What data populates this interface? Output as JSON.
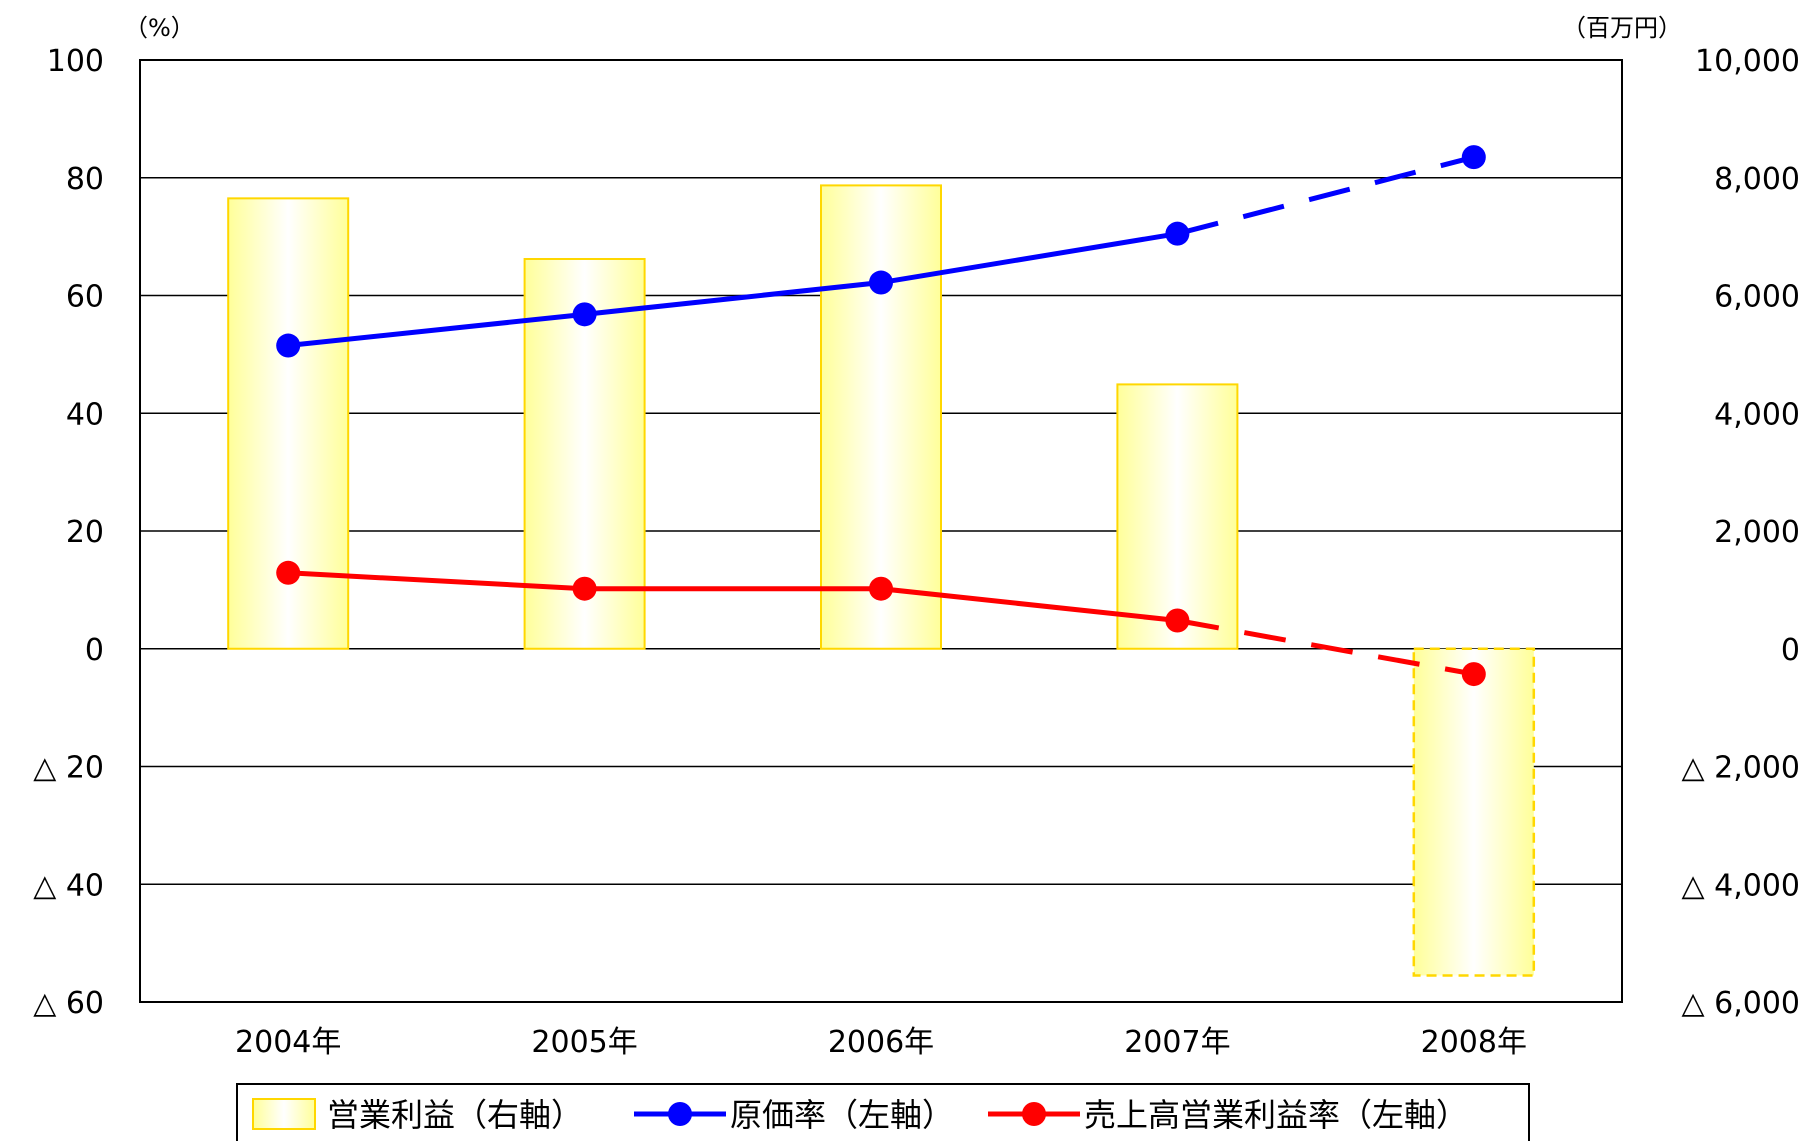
{
  "chart_data": {
    "type": "bar",
    "categories": [
      "2004年",
      "2005年",
      "2006年",
      "2007年",
      "2008年"
    ],
    "left_axis": {
      "unit": "（%）",
      "ylim": [
        -60,
        100
      ],
      "ticks": [
        100,
        80,
        60,
        40,
        20,
        0,
        -20,
        -40,
        -60
      ],
      "tick_labels": [
        "100",
        "80",
        "60",
        "40",
        "20",
        "0",
        "△ 20",
        "△ 40",
        "△ 60"
      ]
    },
    "right_axis": {
      "unit": "（百万円）",
      "ylim": [
        -6000,
        10000
      ],
      "ticks": [
        10000,
        8000,
        6000,
        4000,
        2000,
        0,
        -2000,
        -4000,
        -6000
      ],
      "tick_labels": [
        "10,000",
        "8,000",
        "6,000",
        "4,000",
        "2,000",
        "0",
        "△ 2,000",
        "△ 4,000",
        "△ 6,000"
      ]
    },
    "grid": true,
    "legend_position": "bottom",
    "series": [
      {
        "name": "営業利益（右軸）",
        "type": "bar",
        "axis": "right",
        "values": [
          7650,
          6620,
          7870,
          4490,
          -5550
        ],
        "dashed_from_index": 4,
        "color": "#ffd700"
      },
      {
        "name": "原価率（左軸）",
        "type": "line",
        "axis": "left",
        "values": [
          51.5,
          56.8,
          62.2,
          70.5,
          83.5
        ],
        "dashed_from_index": 3,
        "color": "#0000ff"
      },
      {
        "name": "売上高営業利益率（左軸）",
        "type": "line",
        "axis": "left",
        "values": [
          12.9,
          10.2,
          10.2,
          4.8,
          -4.3
        ],
        "dashed_from_index": 3,
        "color": "#ff0000"
      }
    ]
  }
}
